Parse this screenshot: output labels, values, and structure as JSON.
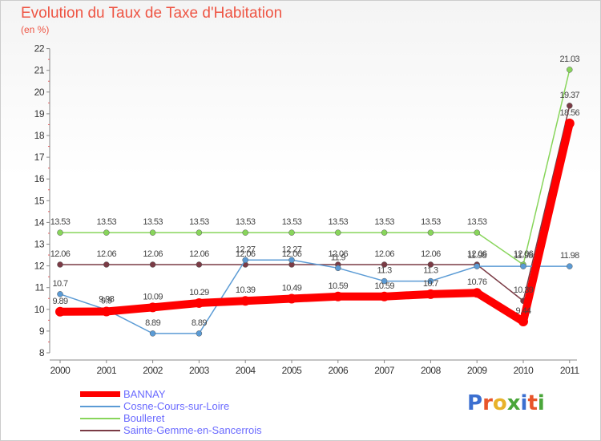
{
  "chart_data": {
    "type": "line",
    "title": "Evolution du Taux de Taxe d'Habitation",
    "subtitle": "(en %)",
    "x": [
      "2000",
      "2001",
      "2002",
      "2003",
      "2004",
      "2005",
      "2006",
      "2007",
      "2008",
      "2009",
      "2010",
      "2011"
    ],
    "yticks": [
      "8",
      "9",
      "10",
      "11",
      "12",
      "13",
      "14",
      "15",
      "16",
      "17",
      "18",
      "19",
      "20",
      "21",
      "22"
    ],
    "ylim": [
      8,
      22
    ],
    "grid": false,
    "legend_position": "bottom-left",
    "series": [
      {
        "name": "BANNAY",
        "color": "#ff0000",
        "values": [
          9.89,
          9.9,
          10.09,
          10.29,
          10.39,
          10.49,
          10.59,
          10.59,
          10.7,
          10.76,
          9.44,
          18.56
        ],
        "labels": [
          "9.89",
          "9.9",
          "10.09",
          "10.29",
          "10.39",
          "10.49",
          "10.59",
          "10.59",
          "10.7",
          "10.76",
          "9.44",
          "18.56"
        ]
      },
      {
        "name": "Cosne-Cours-sur-Loire",
        "color": "#5b9bd5",
        "values": [
          10.7,
          9.98,
          8.89,
          8.89,
          12.27,
          12.27,
          11.9,
          11.3,
          11.3,
          11.98,
          11.98,
          11.98
        ],
        "labels": [
          "10.7",
          "9.98",
          "8.89",
          "8.89",
          "12.27",
          "12.27",
          "11.9",
          "11.3",
          "11.3",
          "11.98",
          "11.98",
          "11.98"
        ]
      },
      {
        "name": "Boulleret",
        "color": "#88d55b",
        "values": [
          13.53,
          13.53,
          13.53,
          13.53,
          13.53,
          13.53,
          13.53,
          13.53,
          13.53,
          13.53,
          12.06,
          21.03
        ],
        "labels": [
          "13.53",
          "13.53",
          "13.53",
          "13.53",
          "13.53",
          "13.53",
          "13.53",
          "13.53",
          "13.53",
          "13.53",
          "12.06",
          "21.03"
        ]
      },
      {
        "name": "Sainte-Gemme-en-Sancerrois",
        "color": "#7a3b45",
        "values": [
          12.06,
          12.06,
          12.06,
          12.06,
          12.06,
          12.06,
          12.06,
          12.06,
          12.06,
          12.06,
          10.39,
          19.37
        ],
        "labels": [
          "12.06",
          "12.06",
          "12.06",
          "12.06",
          "12.06",
          "12.06",
          "12.06",
          "12.06",
          "12.06",
          "12.06",
          "10.39",
          "19.37"
        ]
      }
    ]
  },
  "logo": {
    "text": "Proxiti"
  }
}
